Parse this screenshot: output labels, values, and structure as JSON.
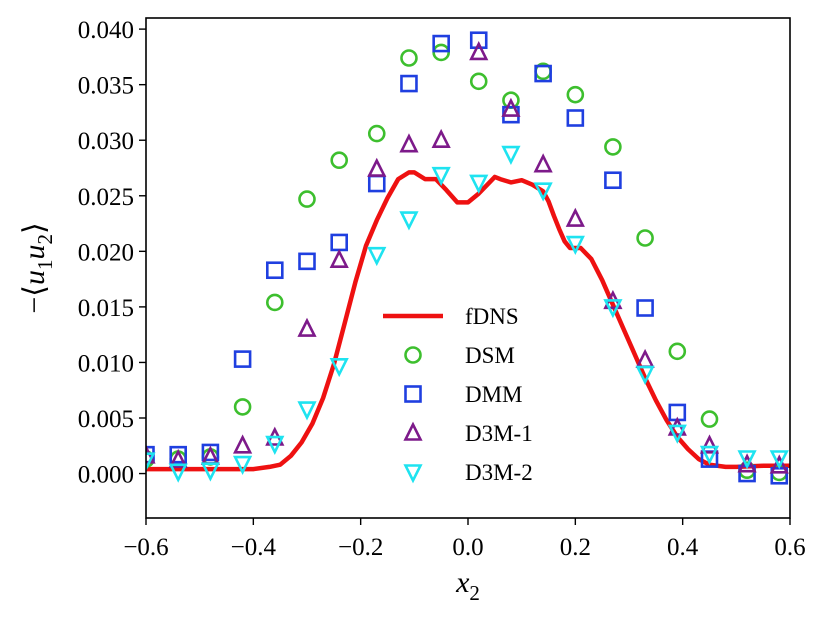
{
  "chart_data": {
    "type": "scatter",
    "xlabel": "x2",
    "xlabel_base": "x",
    "xlabel_sub": "2",
    "ylabel": "−⟨u1u2⟩",
    "ylabel_parts": {
      "minus": "−",
      "open": "⟨",
      "u": "u",
      "sub1": "1",
      "sub2": "2",
      "close": "⟩"
    },
    "xlim": [
      -0.6,
      0.6
    ],
    "ylim": [
      -0.004,
      0.041
    ],
    "xticks": [
      -0.6,
      -0.4,
      -0.2,
      0.0,
      0.2,
      0.4,
      0.6
    ],
    "xtick_labels": [
      "−0.6",
      "−0.4",
      "−0.2",
      "0.0",
      "0.2",
      "0.4",
      "0.6"
    ],
    "yticks": [
      0.0,
      0.005,
      0.01,
      0.015,
      0.02,
      0.025,
      0.03,
      0.035,
      0.04
    ],
    "ytick_labels": [
      "0.000",
      "0.005",
      "0.010",
      "0.015",
      "0.020",
      "0.025",
      "0.030",
      "0.035",
      "0.040"
    ],
    "legend_position": "center",
    "series": [
      {
        "name": "fDNS",
        "kind": "line",
        "color": "#ee1111",
        "x": [
          -0.6,
          -0.5,
          -0.45,
          -0.4,
          -0.37,
          -0.35,
          -0.33,
          -0.31,
          -0.29,
          -0.27,
          -0.25,
          -0.23,
          -0.21,
          -0.19,
          -0.17,
          -0.15,
          -0.13,
          -0.11,
          -0.1,
          -0.08,
          -0.06,
          -0.04,
          -0.02,
          0.0,
          0.02,
          0.04,
          0.05,
          0.06,
          0.08,
          0.1,
          0.12,
          0.14,
          0.15,
          0.16,
          0.17,
          0.18,
          0.19,
          0.2,
          0.21,
          0.23,
          0.25,
          0.27,
          0.29,
          0.31,
          0.33,
          0.35,
          0.37,
          0.39,
          0.41,
          0.43,
          0.45,
          0.48,
          0.5,
          0.55,
          0.6
        ],
        "y": [
          0.0004,
          0.0004,
          0.0004,
          0.0004,
          0.0006,
          0.0008,
          0.0016,
          0.0028,
          0.0045,
          0.0068,
          0.0098,
          0.0135,
          0.0172,
          0.0205,
          0.0228,
          0.0248,
          0.0265,
          0.0271,
          0.0271,
          0.0265,
          0.0265,
          0.0255,
          0.0244,
          0.0244,
          0.0252,
          0.0262,
          0.0267,
          0.0265,
          0.0262,
          0.0264,
          0.026,
          0.0254,
          0.0245,
          0.0232,
          0.022,
          0.0209,
          0.0203,
          0.0203,
          0.0203,
          0.0193,
          0.0174,
          0.0152,
          0.013,
          0.0108,
          0.0086,
          0.0066,
          0.0048,
          0.0033,
          0.0022,
          0.0013,
          0.0008,
          0.0006,
          0.0006,
          0.0007,
          0.0007
        ]
      },
      {
        "name": "DSM",
        "kind": "marker",
        "marker": "circle",
        "color": "#3dbf2e",
        "x": [
          -0.6,
          -0.54,
          -0.48,
          -0.42,
          -0.36,
          -0.3,
          -0.24,
          -0.17,
          -0.11,
          -0.05,
          0.02,
          0.08,
          0.14,
          0.2,
          0.27,
          0.33,
          0.39,
          0.45,
          0.52,
          0.58
        ],
        "y": [
          0.0013,
          0.0013,
          0.0015,
          0.006,
          0.0154,
          0.0247,
          0.0282,
          0.0306,
          0.0374,
          0.0379,
          0.0353,
          0.0336,
          0.0362,
          0.0341,
          0.0294,
          0.0212,
          0.011,
          0.0049,
          0.0003,
          0.0001
        ]
      },
      {
        "name": "DMM",
        "kind": "marker",
        "marker": "square",
        "color": "#1f3fe0",
        "x": [
          -0.6,
          -0.54,
          -0.48,
          -0.42,
          -0.36,
          -0.3,
          -0.24,
          -0.17,
          -0.11,
          -0.05,
          0.02,
          0.08,
          0.14,
          0.2,
          0.27,
          0.33,
          0.39,
          0.45,
          0.52,
          0.58
        ],
        "y": [
          0.0017,
          0.0017,
          0.0019,
          0.0103,
          0.0183,
          0.0191,
          0.0208,
          0.0261,
          0.0351,
          0.0387,
          0.039,
          0.0323,
          0.036,
          0.032,
          0.0264,
          0.0149,
          0.0055,
          0.0013,
          0.0,
          -0.0002
        ]
      },
      {
        "name": "D3M-1",
        "kind": "marker",
        "marker": "triangle-up",
        "color": "#7d1a8a",
        "x": [
          -0.6,
          -0.54,
          -0.48,
          -0.42,
          -0.36,
          -0.3,
          -0.24,
          -0.17,
          -0.11,
          -0.05,
          0.02,
          0.08,
          0.14,
          0.2,
          0.27,
          0.33,
          0.39,
          0.45,
          0.52,
          0.58
        ],
        "y": [
          0.0016,
          0.0012,
          0.0015,
          0.0025,
          0.0032,
          0.013,
          0.0192,
          0.0274,
          0.0296,
          0.03,
          0.0379,
          0.0328,
          0.0278,
          0.0229,
          0.0155,
          0.0102,
          0.0041,
          0.0025,
          0.0008,
          0.0007
        ]
      },
      {
        "name": "D3M-2",
        "kind": "marker",
        "marker": "triangle-down",
        "color": "#1ee3f0",
        "x": [
          -0.6,
          -0.54,
          -0.48,
          -0.42,
          -0.36,
          -0.3,
          -0.24,
          -0.17,
          -0.11,
          -0.05,
          0.02,
          0.08,
          0.14,
          0.2,
          0.27,
          0.33,
          0.39,
          0.45,
          0.52,
          0.58
        ],
        "y": [
          0.0012,
          0.0002,
          0.0003,
          0.0009,
          0.0027,
          0.0058,
          0.0097,
          0.0197,
          0.0229,
          0.0269,
          0.0262,
          0.0288,
          0.0255,
          0.0207,
          0.015,
          0.009,
          0.0037,
          0.0018,
          0.0014,
          0.0014
        ]
      }
    ]
  }
}
